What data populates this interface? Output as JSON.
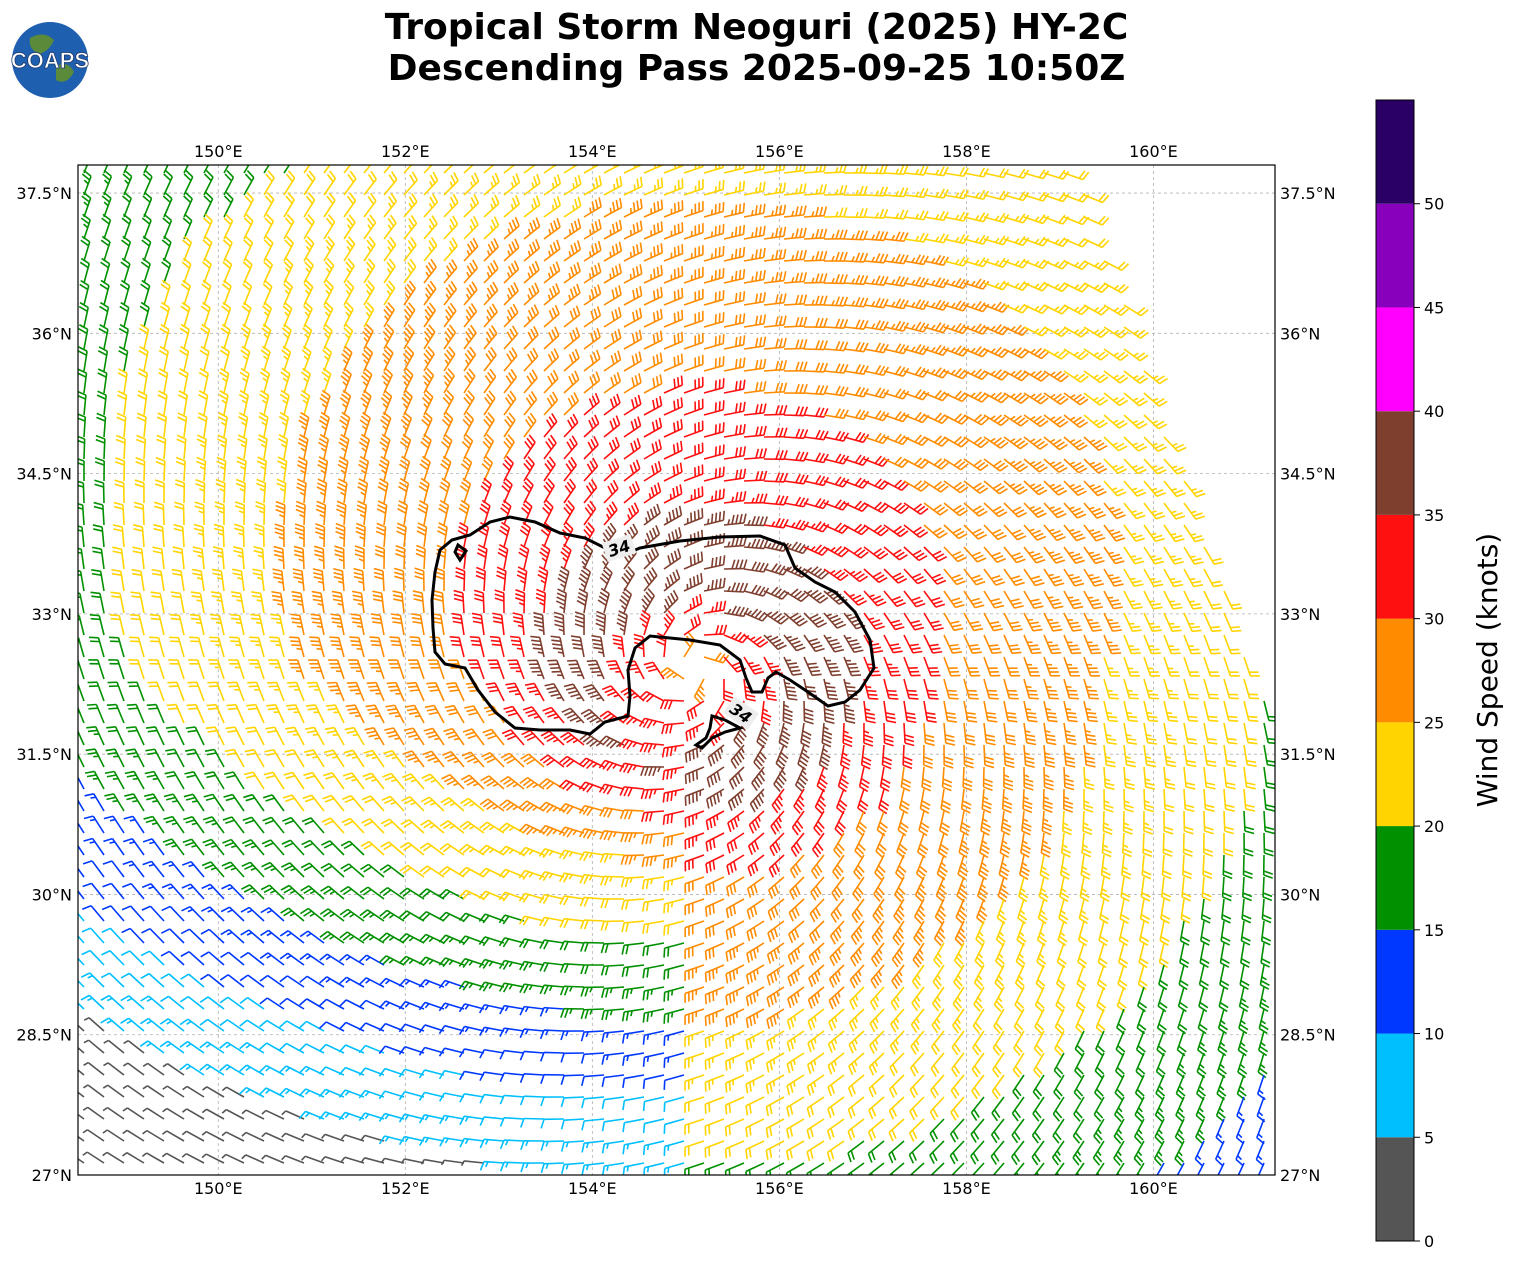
{
  "header": {
    "title_line1": "Tropical Storm Neoguri (2025) HY-2C",
    "title_line2": "Descending Pass 2025-09-25 10:50Z"
  },
  "logo": {
    "text": "COAPS",
    "icon": "globe-icon"
  },
  "map": {
    "lon_labels": [
      "150°E",
      "152°E",
      "154°E",
      "156°E",
      "158°E",
      "160°E"
    ],
    "lat_labels": [
      "37.5°N",
      "36°N",
      "34.5°N",
      "33°N",
      "31.5°N",
      "30°N",
      "28.5°N",
      "27°N"
    ],
    "lon_values": [
      150,
      152,
      154,
      156,
      158,
      160
    ],
    "lat_values": [
      37.5,
      36,
      34.5,
      33,
      31.5,
      30,
      28.5,
      27
    ],
    "lon_range": [
      148.5,
      161.3
    ],
    "lat_range": [
      27,
      37.8
    ],
    "storm_center": {
      "lon": 155.1,
      "lat": 32.4
    },
    "contour_label": "34",
    "contour_label_2": "34",
    "grid": true
  },
  "colorbar": {
    "label": "Wind Speed (knots)",
    "ticks": [
      "0",
      "5",
      "10",
      "15",
      "20",
      "25",
      "30",
      "35",
      "40",
      "45",
      "50"
    ],
    "colors": [
      "#555555",
      "#00bfff",
      "#0038ff",
      "#009000",
      "#ffd400",
      "#ff8c00",
      "#ff1010",
      "#7f3f2f",
      "#ff00ff",
      "#8800bb",
      "#2a0066"
    ],
    "range": [
      0,
      55
    ]
  }
}
